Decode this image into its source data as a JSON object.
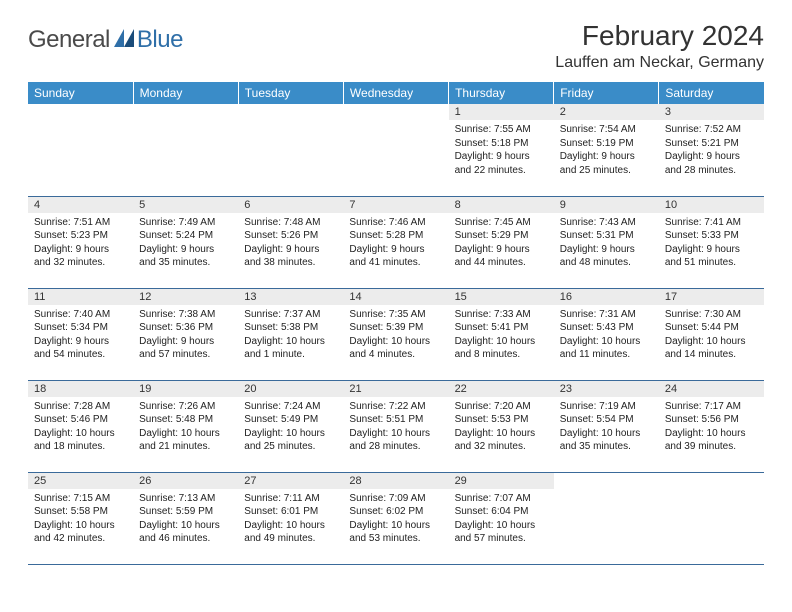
{
  "logo": {
    "text1": "General",
    "text2": "Blue"
  },
  "title": "February 2024",
  "location": "Lauffen am Neckar, Germany",
  "header_bg": "#3a8cc8",
  "header_fg": "#ffffff",
  "daynum_bg": "#ececec",
  "rule_color": "#3a6a9a",
  "text_color": "#222222",
  "weekdays": [
    "Sunday",
    "Monday",
    "Tuesday",
    "Wednesday",
    "Thursday",
    "Friday",
    "Saturday"
  ],
  "weeks": [
    [
      null,
      null,
      null,
      null,
      {
        "n": "1",
        "sr": "7:55 AM",
        "ss": "5:18 PM",
        "dl": "9 hours and 22 minutes."
      },
      {
        "n": "2",
        "sr": "7:54 AM",
        "ss": "5:19 PM",
        "dl": "9 hours and 25 minutes."
      },
      {
        "n": "3",
        "sr": "7:52 AM",
        "ss": "5:21 PM",
        "dl": "9 hours and 28 minutes."
      }
    ],
    [
      {
        "n": "4",
        "sr": "7:51 AM",
        "ss": "5:23 PM",
        "dl": "9 hours and 32 minutes."
      },
      {
        "n": "5",
        "sr": "7:49 AM",
        "ss": "5:24 PM",
        "dl": "9 hours and 35 minutes."
      },
      {
        "n": "6",
        "sr": "7:48 AM",
        "ss": "5:26 PM",
        "dl": "9 hours and 38 minutes."
      },
      {
        "n": "7",
        "sr": "7:46 AM",
        "ss": "5:28 PM",
        "dl": "9 hours and 41 minutes."
      },
      {
        "n": "8",
        "sr": "7:45 AM",
        "ss": "5:29 PM",
        "dl": "9 hours and 44 minutes."
      },
      {
        "n": "9",
        "sr": "7:43 AM",
        "ss": "5:31 PM",
        "dl": "9 hours and 48 minutes."
      },
      {
        "n": "10",
        "sr": "7:41 AM",
        "ss": "5:33 PM",
        "dl": "9 hours and 51 minutes."
      }
    ],
    [
      {
        "n": "11",
        "sr": "7:40 AM",
        "ss": "5:34 PM",
        "dl": "9 hours and 54 minutes."
      },
      {
        "n": "12",
        "sr": "7:38 AM",
        "ss": "5:36 PM",
        "dl": "9 hours and 57 minutes."
      },
      {
        "n": "13",
        "sr": "7:37 AM",
        "ss": "5:38 PM",
        "dl": "10 hours and 1 minute."
      },
      {
        "n": "14",
        "sr": "7:35 AM",
        "ss": "5:39 PM",
        "dl": "10 hours and 4 minutes."
      },
      {
        "n": "15",
        "sr": "7:33 AM",
        "ss": "5:41 PM",
        "dl": "10 hours and 8 minutes."
      },
      {
        "n": "16",
        "sr": "7:31 AM",
        "ss": "5:43 PM",
        "dl": "10 hours and 11 minutes."
      },
      {
        "n": "17",
        "sr": "7:30 AM",
        "ss": "5:44 PM",
        "dl": "10 hours and 14 minutes."
      }
    ],
    [
      {
        "n": "18",
        "sr": "7:28 AM",
        "ss": "5:46 PM",
        "dl": "10 hours and 18 minutes."
      },
      {
        "n": "19",
        "sr": "7:26 AM",
        "ss": "5:48 PM",
        "dl": "10 hours and 21 minutes."
      },
      {
        "n": "20",
        "sr": "7:24 AM",
        "ss": "5:49 PM",
        "dl": "10 hours and 25 minutes."
      },
      {
        "n": "21",
        "sr": "7:22 AM",
        "ss": "5:51 PM",
        "dl": "10 hours and 28 minutes."
      },
      {
        "n": "22",
        "sr": "7:20 AM",
        "ss": "5:53 PM",
        "dl": "10 hours and 32 minutes."
      },
      {
        "n": "23",
        "sr": "7:19 AM",
        "ss": "5:54 PM",
        "dl": "10 hours and 35 minutes."
      },
      {
        "n": "24",
        "sr": "7:17 AM",
        "ss": "5:56 PM",
        "dl": "10 hours and 39 minutes."
      }
    ],
    [
      {
        "n": "25",
        "sr": "7:15 AM",
        "ss": "5:58 PM",
        "dl": "10 hours and 42 minutes."
      },
      {
        "n": "26",
        "sr": "7:13 AM",
        "ss": "5:59 PM",
        "dl": "10 hours and 46 minutes."
      },
      {
        "n": "27",
        "sr": "7:11 AM",
        "ss": "6:01 PM",
        "dl": "10 hours and 49 minutes."
      },
      {
        "n": "28",
        "sr": "7:09 AM",
        "ss": "6:02 PM",
        "dl": "10 hours and 53 minutes."
      },
      {
        "n": "29",
        "sr": "7:07 AM",
        "ss": "6:04 PM",
        "dl": "10 hours and 57 minutes."
      },
      null,
      null
    ]
  ],
  "labels": {
    "sunrise": "Sunrise:",
    "sunset": "Sunset:",
    "daylight": "Daylight:"
  }
}
